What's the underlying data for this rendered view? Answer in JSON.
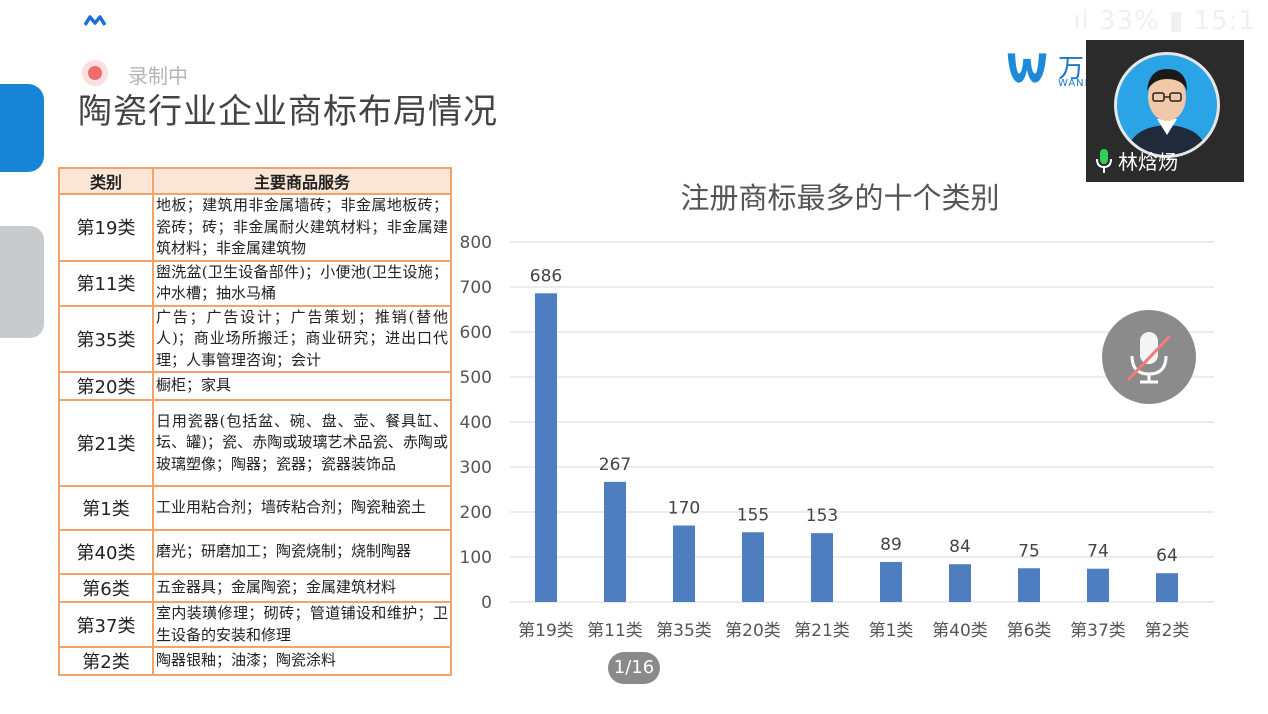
{
  "status": {
    "right_text": "ıl 33% ▮ 15:1"
  },
  "recording": {
    "label": "录制中"
  },
  "slide": {
    "title": "陶瓷行业企业商标布局情况"
  },
  "logo": {
    "text": "万",
    "sub": "WANH"
  },
  "video": {
    "speaker_name": "林焓炀"
  },
  "table": {
    "headers": [
      "类别",
      "主要商品服务"
    ],
    "rows": [
      {
        "cls": "第19类",
        "svc": "地板；建筑用非金属墙砖；非金属地板砖；瓷砖；砖；非金属耐火建筑材料；非金属建筑材料；非金属建筑物"
      },
      {
        "cls": "第11类",
        "svc": "盥洗盆(卫生设备部件)；小便池(卫生设施；冲水槽；抽水马桶"
      },
      {
        "cls": "第35类",
        "svc": "广告；广告设计；广告策划；推销(替他人)；商业场所搬迁；商业研究；进出口代理；人事管理咨询；会计"
      },
      {
        "cls": "第20类",
        "svc": "橱柜；家具"
      },
      {
        "cls": "第21类",
        "svc": "日用瓷器(包括盆、碗、盘、壶、餐具缸、坛、罐)；瓷、赤陶或玻璃艺术品瓷、赤陶或玻璃塑像；陶器；瓷器；瓷器装饰品"
      },
      {
        "cls": "第1类",
        "svc": "工业用粘合剂；墙砖粘合剂；陶瓷釉瓷土"
      },
      {
        "cls": "第40类",
        "svc": "磨光；研磨加工；陶瓷烧制；烧制陶器"
      },
      {
        "cls": "第6类",
        "svc": "五金器具；金属陶瓷；金属建筑材料"
      },
      {
        "cls": "第37类",
        "svc": "室内装璜修理；砌砖；管道铺设和维护；卫生设备的安装和修理"
      },
      {
        "cls": "第2类",
        "svc": "陶器银釉；油漆；陶瓷涂料"
      }
    ]
  },
  "chart_data": {
    "type": "bar",
    "title": "注册商标最多的十个类别",
    "categories": [
      "第19类",
      "第11类",
      "第35类",
      "第20类",
      "第21类",
      "第1类",
      "第40类",
      "第6类",
      "第37类",
      "第2类"
    ],
    "values": [
      686,
      267,
      170,
      155,
      153,
      89,
      84,
      75,
      74,
      64
    ],
    "yticks": [
      "0",
      "100",
      "200",
      "300",
      "400",
      "500",
      "600",
      "700",
      "800"
    ],
    "ylim": [
      0,
      800
    ],
    "grid": true,
    "bar_color": "#4f7ec0"
  },
  "pager": {
    "label": "1/16"
  }
}
